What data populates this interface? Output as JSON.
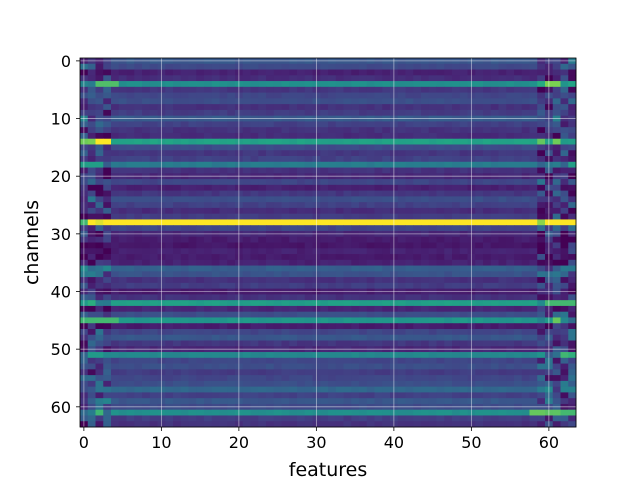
{
  "chart_data": {
    "type": "heatmap",
    "title": "",
    "xlabel": "features",
    "ylabel": "channels",
    "n_features": 64,
    "n_channels": 64,
    "xlim": [
      -0.5,
      63.5
    ],
    "ylim": [
      63.5,
      -0.5
    ],
    "xticks": [
      0,
      10,
      20,
      30,
      40,
      50,
      60
    ],
    "yticks": [
      0,
      10,
      20,
      30,
      40,
      50,
      60
    ],
    "grid": true,
    "colormap": "viridis",
    "value_range": [
      0,
      1
    ],
    "row_levels": [
      0.34,
      0.28,
      0.12,
      0.16,
      0.62,
      0.2,
      0.26,
      0.3,
      0.18,
      0.22,
      0.36,
      0.24,
      0.18,
      0.16,
      0.72,
      0.28,
      0.2,
      0.24,
      0.52,
      0.18,
      0.14,
      0.26,
      0.12,
      0.2,
      0.3,
      0.24,
      0.16,
      0.22,
      0.95,
      0.26,
      0.14,
      0.1,
      0.08,
      0.12,
      0.1,
      0.12,
      0.38,
      0.32,
      0.18,
      0.22,
      0.1,
      0.18,
      0.7,
      0.14,
      0.3,
      0.66,
      0.1,
      0.26,
      0.34,
      0.2,
      0.14,
      0.58,
      0.26,
      0.3,
      0.22,
      0.26,
      0.3,
      0.42,
      0.24,
      0.34,
      0.28,
      0.62,
      0.22,
      0.18
    ],
    "row_accents": [
      {
        "channel": 4,
        "feature_range": [
          2,
          4
        ],
        "level": 0.82
      },
      {
        "channel": 4,
        "feature_range": [
          60,
          61
        ],
        "level": 0.88
      },
      {
        "channel": 14,
        "feature_range": [
          2,
          3
        ],
        "level": 1.0
      },
      {
        "channel": 18,
        "feature_range": [
          0,
          2
        ],
        "level": 0.7
      },
      {
        "channel": 28,
        "feature_range": [
          3,
          58
        ],
        "level": 1.0
      },
      {
        "channel": 42,
        "feature_range": [
          60,
          63
        ],
        "level": 0.8
      },
      {
        "channel": 45,
        "feature_range": [
          2,
          4
        ],
        "level": 0.8
      },
      {
        "channel": 51,
        "feature_range": [
          1,
          2
        ],
        "level": 0.68
      },
      {
        "channel": 61,
        "feature_range": [
          58,
          59
        ],
        "level": 0.85
      },
      {
        "channel": 61,
        "feature_range": [
          62,
          63
        ],
        "level": 0.8
      }
    ],
    "edge_variation": {
      "left_features": 4,
      "right_features": 5
    }
  }
}
